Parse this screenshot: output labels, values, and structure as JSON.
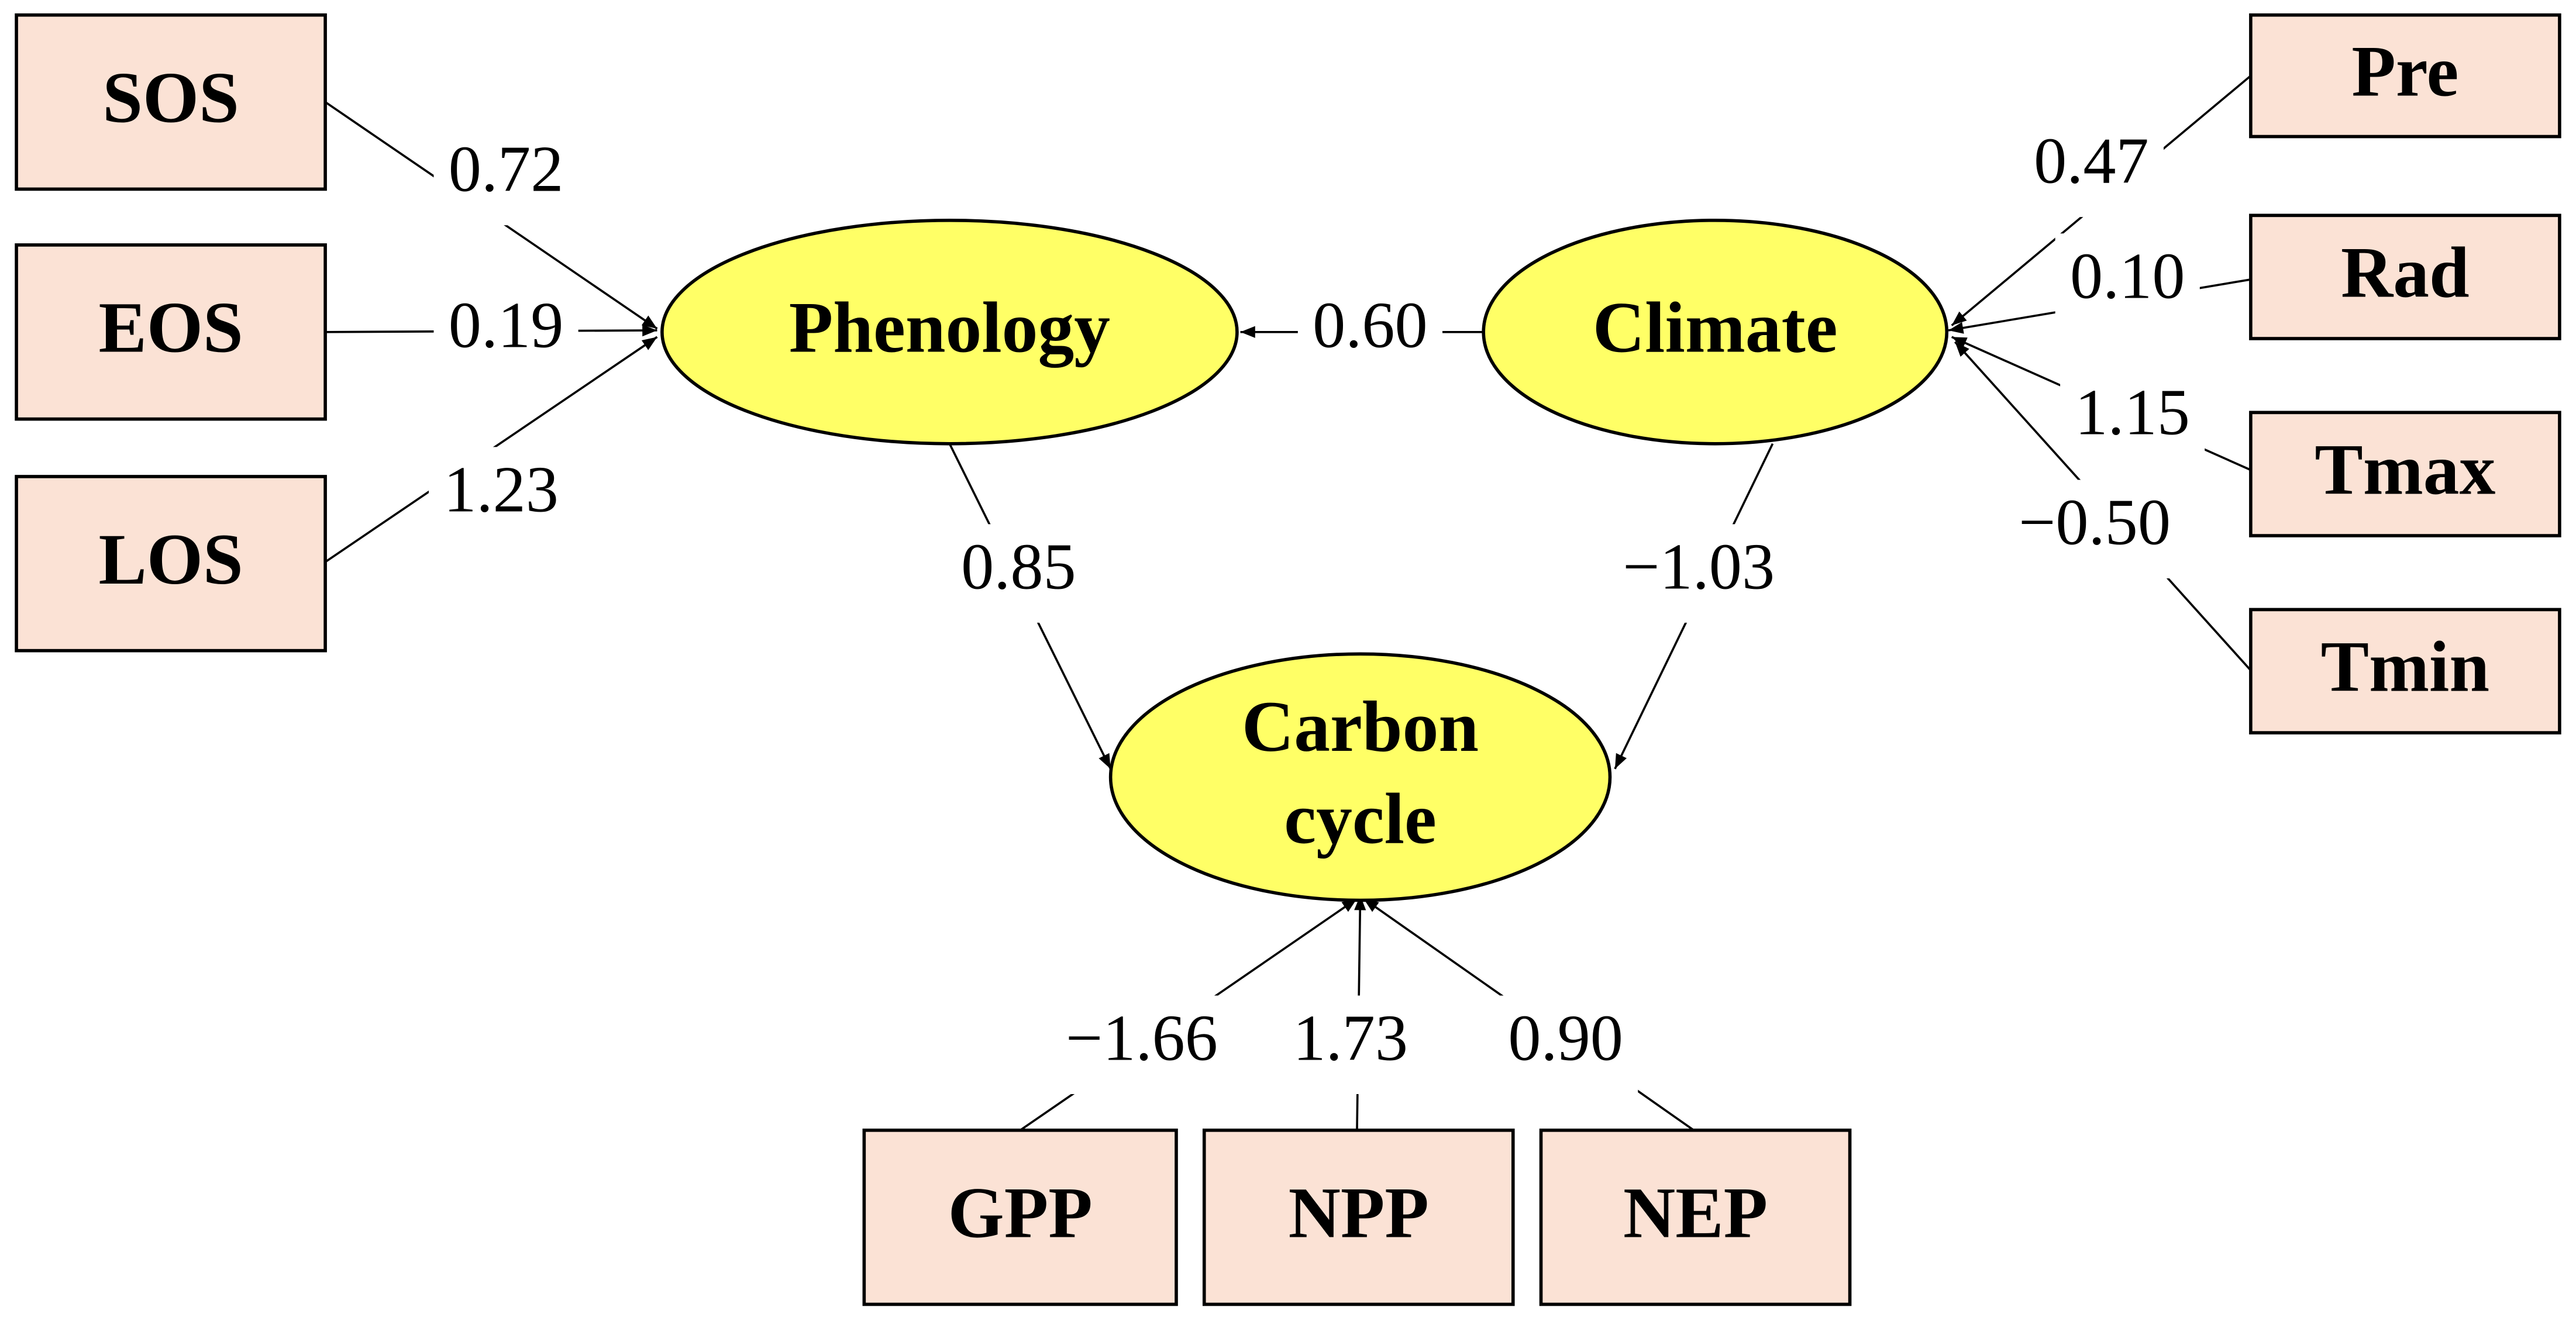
{
  "nodes": [
    {
      "label_lines": [
        "SOS"
      ]
    },
    {
      "label_lines": [
        "EOS"
      ]
    },
    {
      "label_lines": [
        "LOS"
      ]
    },
    {
      "label_lines": [
        "Pre"
      ]
    },
    {
      "label_lines": [
        "Rad"
      ]
    },
    {
      "label_lines": [
        "Tmax"
      ]
    },
    {
      "label_lines": [
        "Tmin"
      ]
    },
    {
      "label_lines": [
        "GPP"
      ]
    },
    {
      "label_lines": [
        "NPP"
      ]
    },
    {
      "label_lines": [
        "NEP"
      ]
    },
    {
      "label_lines": [
        "Phenology"
      ]
    },
    {
      "label_lines": [
        "Climate"
      ]
    },
    {
      "label_lines": [
        "Carbon",
        "cycle"
      ]
    }
  ],
  "edges": [
    {
      "label": "0.72"
    },
    {
      "label": "0.19"
    },
    {
      "label": "1.23"
    },
    {
      "label": "0.47"
    },
    {
      "label": "0.10"
    },
    {
      "label": "1.15"
    },
    {
      "label": "−0.50"
    },
    {
      "label": "0.60"
    },
    {
      "label": "0.85"
    },
    {
      "label": "−1.03"
    },
    {
      "label": "−1.66"
    },
    {
      "label": "1.73"
    },
    {
      "label": "0.90"
    }
  ]
}
